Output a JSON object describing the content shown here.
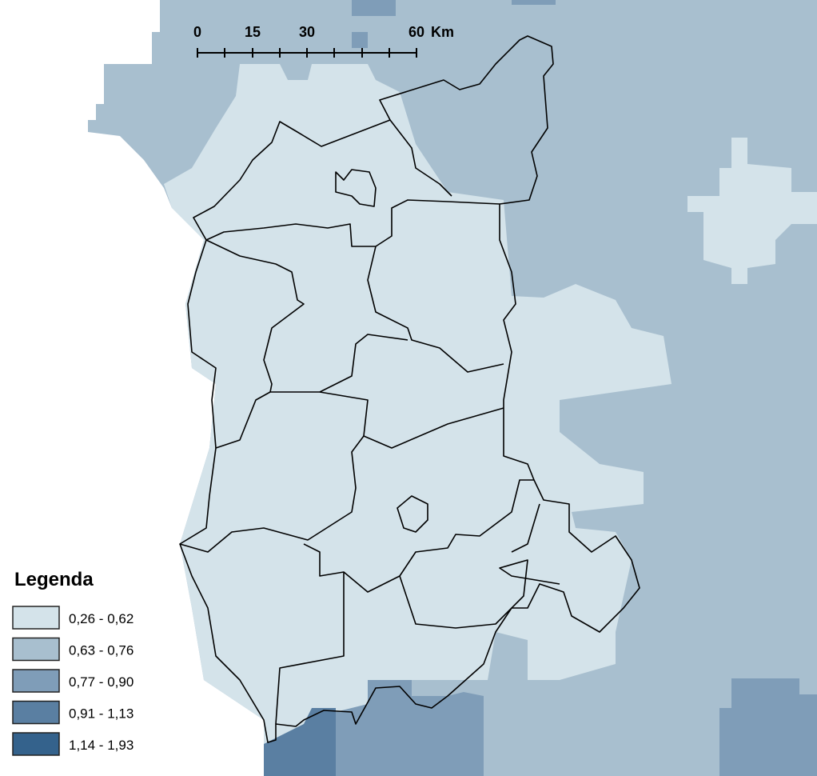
{
  "scale_bar": {
    "labels": [
      "0",
      "15",
      "30",
      "60"
    ],
    "unit": "Km"
  },
  "legend": {
    "title": "Legenda",
    "items": [
      {
        "label": "0,26 - 0,62",
        "color": "#d4e3ea"
      },
      {
        "label": "0,63 - 0,76",
        "color": "#a8bfcf"
      },
      {
        "label": "0,77 - 0,90",
        "color": "#7f9db8"
      },
      {
        "label": "0,91 - 1,13",
        "color": "#5a7fa2"
      },
      {
        "label": "1,14 - 1,93",
        "color": "#34628c"
      }
    ]
  }
}
